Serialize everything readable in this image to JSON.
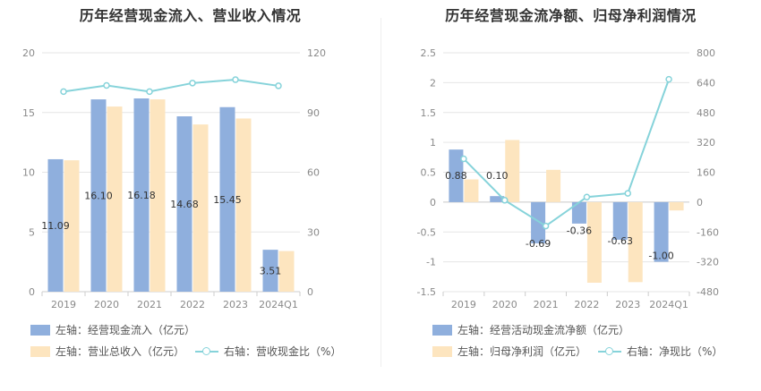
{
  "chart_data": [
    {
      "type": "bar",
      "title": "历年经营现金流入、营业收入情况",
      "categories": [
        "2019",
        "2020",
        "2021",
        "2022",
        "2023",
        "2024Q1"
      ],
      "series": [
        {
          "name": "左轴：经营现金流入（亿元）",
          "axis": "left",
          "type": "bar",
          "color": "#8fafdd",
          "values": [
            11.09,
            16.1,
            16.18,
            14.68,
            15.45,
            3.51
          ],
          "labels": [
            "11.09",
            "16.10",
            "16.18",
            "14.68",
            "15.45",
            "3.51"
          ]
        },
        {
          "name": "左轴：营业总收入（亿元）",
          "axis": "left",
          "type": "bar",
          "color": "#fde5bf",
          "values": [
            11.0,
            15.5,
            16.1,
            14.0,
            14.5,
            3.4
          ]
        },
        {
          "name": "右轴：营收现金比（%）",
          "axis": "right",
          "type": "line",
          "color": "#86d3da",
          "values": [
            100.5,
            103.6,
            100.5,
            104.8,
            106.5,
            103.4
          ]
        }
      ],
      "left_axis": {
        "min": 0,
        "max": 20,
        "ticks": [
          "0",
          "5",
          "10",
          "15",
          "20"
        ]
      },
      "right_axis": {
        "min": 0,
        "max": 120,
        "ticks": [
          "0",
          "30",
          "60",
          "90",
          "120"
        ]
      }
    },
    {
      "type": "bar",
      "title": "历年经营现金流净额、归母净利润情况",
      "categories": [
        "2019",
        "2020",
        "2021",
        "2022",
        "2023",
        "2024Q1"
      ],
      "series": [
        {
          "name": "左轴：经营活动现金流净额（亿元）",
          "axis": "left",
          "type": "bar",
          "color": "#8fafdd",
          "values": [
            0.88,
            0.1,
            -0.69,
            -0.36,
            -0.63,
            -1.0
          ],
          "labels": [
            "0.88",
            "0.10",
            "-0.69",
            "-0.36",
            "-0.63",
            "-1.00"
          ]
        },
        {
          "name": "左轴：归母净利润（亿元）",
          "axis": "left",
          "type": "bar",
          "color": "#fde5bf",
          "values": [
            0.38,
            1.04,
            0.54,
            -1.35,
            -1.34,
            -0.14
          ]
        },
        {
          "name": "右轴：净现比（%）",
          "axis": "right",
          "type": "line",
          "color": "#86d3da",
          "values": [
            232,
            10,
            -128,
            27,
            47,
            658
          ]
        }
      ],
      "left_axis": {
        "min": -1.5,
        "max": 2.5,
        "ticks": [
          "-1.5",
          "-1",
          "-0.5",
          "0",
          "0.5",
          "1",
          "1.5",
          "2",
          "2.5"
        ]
      },
      "right_axis": {
        "min": -480,
        "max": 800,
        "ticks": [
          "-480",
          "-320",
          "-160",
          "0",
          "160",
          "320",
          "480",
          "640",
          "800"
        ]
      }
    }
  ]
}
